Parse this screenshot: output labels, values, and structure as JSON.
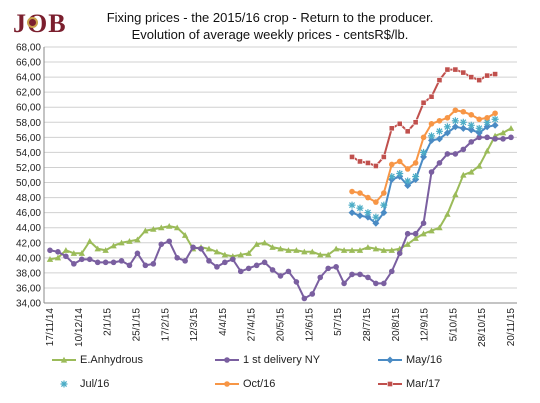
{
  "logo_text": "JOB",
  "title_line1": "Fixing prices - the 2015/16 crop - Return to the producer.",
  "title_line2": "Evolution of average weekly prices - centsR$/lb.",
  "chart_data": {
    "type": "line",
    "ylim": [
      34,
      68
    ],
    "y_ticks": [
      "34,00",
      "36,00",
      "38,00",
      "40,00",
      "42,00",
      "44,00",
      "46,00",
      "48,00",
      "50,00",
      "52,00",
      "54,00",
      "56,00",
      "58,00",
      "60,00",
      "62,00",
      "64,00",
      "66,00",
      "68,00"
    ],
    "x_tick_labels": [
      "17/11/14",
      "10/12/14",
      "2/1/15",
      "25/1/15",
      "17/2/15",
      "12/3/15",
      "4/4/15",
      "27/4/15",
      "20/5/15",
      "12/6/15",
      "5/7/15",
      "28/7/15",
      "20/8/15",
      "12/9/15",
      "5/10/15",
      "28/10/15",
      "20/11/15"
    ],
    "grid": true,
    "legend_position": "bottom",
    "colors": {
      "E.Anhydrous": "#9bbb59",
      "1 st delivery NY": "#7a5fa0",
      "May/16": "#4a8bc4",
      "Jul/16": "#4bacc6",
      "Oct/16": "#f79646",
      "Mar/17": "#c0504d"
    },
    "series": [
      {
        "name": "E.Anhydrous",
        "marker": "triangle",
        "start_week": 0,
        "values": [
          39.8,
          40.0,
          41.0,
          40.6,
          40.6,
          42.2,
          41.2,
          41.0,
          41.6,
          42.0,
          42.2,
          42.4,
          43.6,
          43.8,
          44.0,
          44.2,
          44.0,
          43.0,
          41.2,
          41.4,
          41.2,
          40.8,
          40.4,
          40.2,
          40.4,
          40.6,
          41.8,
          42.0,
          41.4,
          41.2,
          41.0,
          41.0,
          40.8,
          40.8,
          40.4,
          40.4,
          41.2,
          41.0,
          41.0,
          41.0,
          41.4,
          41.2,
          41.0,
          41.0,
          41.2,
          41.8,
          42.6,
          43.2,
          43.6,
          44.0,
          45.8,
          48.4,
          51.0,
          51.4,
          52.2,
          54.2,
          56.2,
          56.6,
          57.2
        ]
      },
      {
        "name": "1 st delivery NY",
        "marker": "circle",
        "start_week": 0,
        "values": [
          41.0,
          40.8,
          40.2,
          39.2,
          39.8,
          39.8,
          39.4,
          39.4,
          39.4,
          39.6,
          39.0,
          40.6,
          39.0,
          39.2,
          41.8,
          42.2,
          40.0,
          39.6,
          41.4,
          41.2,
          39.6,
          38.8,
          39.4,
          39.8,
          38.2,
          38.6,
          39.0,
          39.4,
          38.4,
          37.6,
          38.2,
          36.8,
          34.6,
          35.2,
          37.4,
          38.6,
          38.8,
          36.6,
          37.8,
          37.8,
          37.4,
          36.6,
          36.6,
          38.2,
          40.6,
          43.2,
          43.2,
          44.6,
          51.4,
          52.6,
          53.8,
          53.8,
          54.4,
          55.4,
          56.0,
          56.0,
          55.8,
          55.8,
          56.0
        ]
      },
      {
        "name": "May/16",
        "marker": "diamond",
        "start_week": 38,
        "values": [
          46.0,
          45.6,
          45.4,
          44.6,
          46.0,
          50.4,
          50.8,
          49.6,
          50.4,
          53.4,
          55.6,
          55.8,
          56.6,
          57.4,
          57.2,
          57.0,
          56.6,
          57.4,
          57.6
        ]
      },
      {
        "name": "Jul/16",
        "marker": "star",
        "start_week": 38,
        "values": [
          47.0,
          46.6,
          46.0,
          45.4,
          47.0,
          50.8,
          51.2,
          50.2,
          50.8,
          54.0,
          56.2,
          56.8,
          57.4,
          58.2,
          58.0,
          57.6,
          57.2,
          58.0,
          58.4
        ]
      },
      {
        "name": "Oct/16",
        "marker": "circle",
        "start_week": 38,
        "values": [
          48.8,
          48.6,
          48.0,
          47.4,
          48.6,
          52.4,
          52.8,
          51.8,
          52.6,
          56.0,
          57.8,
          58.2,
          58.6,
          59.6,
          59.4,
          59.0,
          58.4,
          58.6,
          59.2
        ]
      },
      {
        "name": "Mar/17",
        "marker": "square",
        "start_week": 38,
        "values": [
          53.4,
          52.8,
          52.6,
          52.2,
          53.4,
          57.2,
          57.8,
          56.8,
          58.0,
          60.6,
          61.4,
          63.6,
          65.0,
          65.0,
          64.6,
          64.0,
          63.6,
          64.2,
          64.4
        ]
      }
    ]
  }
}
